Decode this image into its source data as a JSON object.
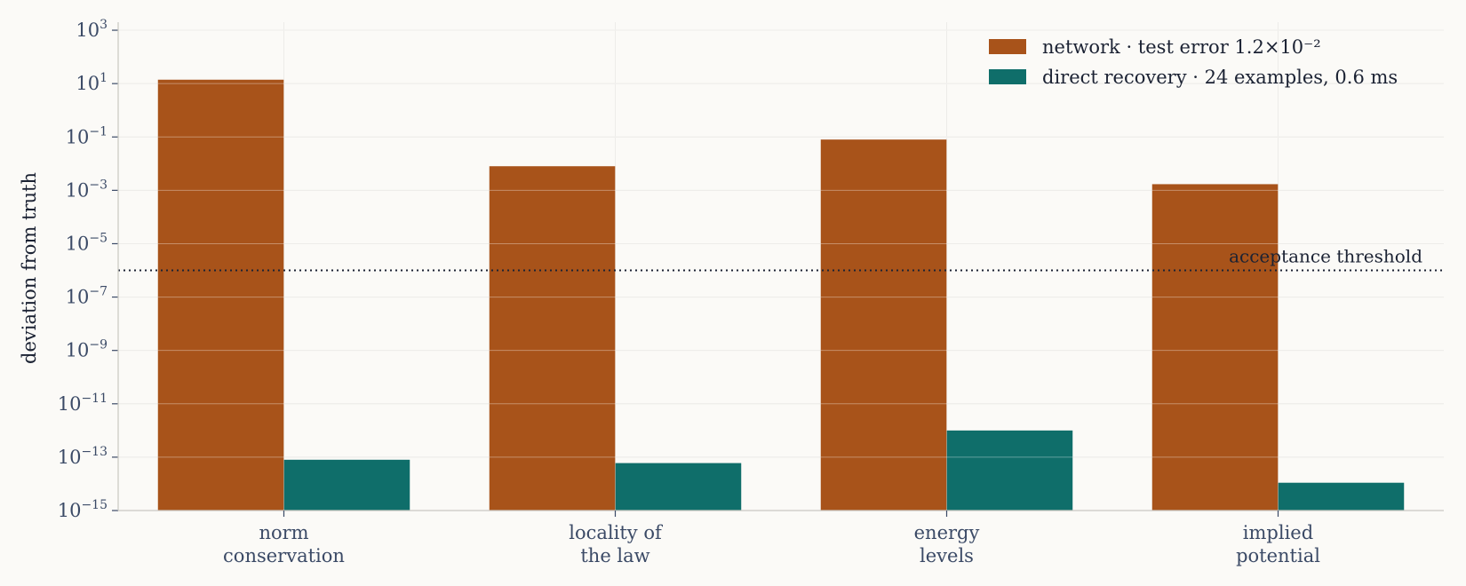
{
  "chart_data": {
    "type": "bar",
    "yscale": "log",
    "ylabel": "deviation from truth",
    "ylim": [
      1e-15,
      2000
    ],
    "yticks": [
      {
        "exp": "3",
        "value": 1000.0
      },
      {
        "exp": "1",
        "value": 10.0
      },
      {
        "exp": "−1",
        "value": 0.1
      },
      {
        "exp": "−3",
        "value": 0.001
      },
      {
        "exp": "−5",
        "value": 1e-05
      },
      {
        "exp": "−7",
        "value": 1e-07
      },
      {
        "exp": "−9",
        "value": 1e-09
      },
      {
        "exp": "−11",
        "value": 1e-11
      },
      {
        "exp": "−13",
        "value": 1e-13
      },
      {
        "exp": "−15",
        "value": 1e-15
      }
    ],
    "tick_base": "10",
    "categories": [
      [
        "norm",
        "conservation"
      ],
      [
        "locality of",
        "the law"
      ],
      [
        "energy",
        "levels"
      ],
      [
        "implied",
        "potential"
      ]
    ],
    "series": [
      {
        "name": "network  ·  test error 1.2×10⁻²",
        "color": "#a8531a",
        "values": [
          14,
          0.008,
          0.08,
          0.0017
        ]
      },
      {
        "name": "direct recovery  ·  24 examples, 0.6 ms",
        "color": "#0f6e6a",
        "values": [
          8e-14,
          6e-14,
          1e-12,
          1.1e-14
        ]
      }
    ],
    "threshold": {
      "value": 1e-06,
      "label": "acceptance threshold"
    },
    "grid": true,
    "legend": "top-right"
  }
}
